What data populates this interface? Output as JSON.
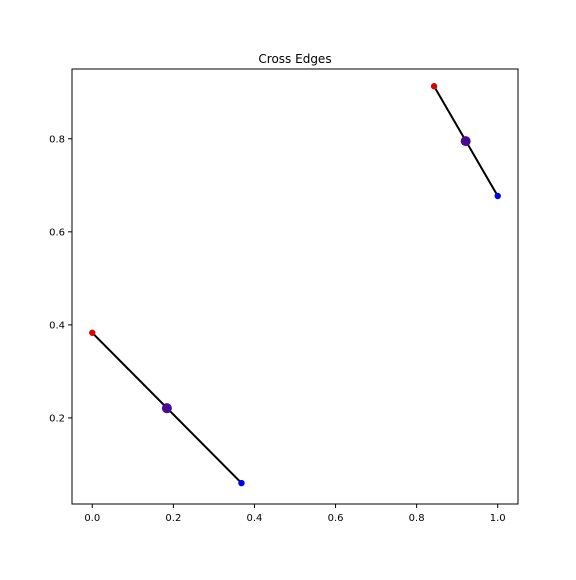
{
  "chart_data": {
    "type": "scatter",
    "title": "Cross Edges",
    "xlabel": "",
    "ylabel": "",
    "xlim": [
      -0.05,
      1.05
    ],
    "ylim": [
      0.015,
      0.95
    ],
    "xticks": [
      0.0,
      0.2,
      0.4,
      0.6,
      0.8,
      1.0
    ],
    "xtick_labels": [
      "0.0",
      "0.2",
      "0.4",
      "0.6",
      "0.8",
      "1.0"
    ],
    "yticks": [
      0.2,
      0.4,
      0.6,
      0.8
    ],
    "ytick_labels": [
      "0.2",
      "0.4",
      "0.6",
      "0.8"
    ],
    "grid": false,
    "edges": [
      {
        "start": {
          "x": 0.0,
          "y": 0.383
        },
        "end": {
          "x": 0.368,
          "y": 0.06
        },
        "midpoint": {
          "x": 0.184,
          "y": 0.221
        }
      },
      {
        "start": {
          "x": 0.843,
          "y": 0.913
        },
        "end": {
          "x": 1.0,
          "y": 0.677
        },
        "midpoint": {
          "x": 0.921,
          "y": 0.795
        }
      }
    ],
    "colors": {
      "edge_line": "#000000",
      "start_point": "#dd0000",
      "end_point": "#0000ee",
      "midpoint": "#4a0a8f"
    }
  }
}
